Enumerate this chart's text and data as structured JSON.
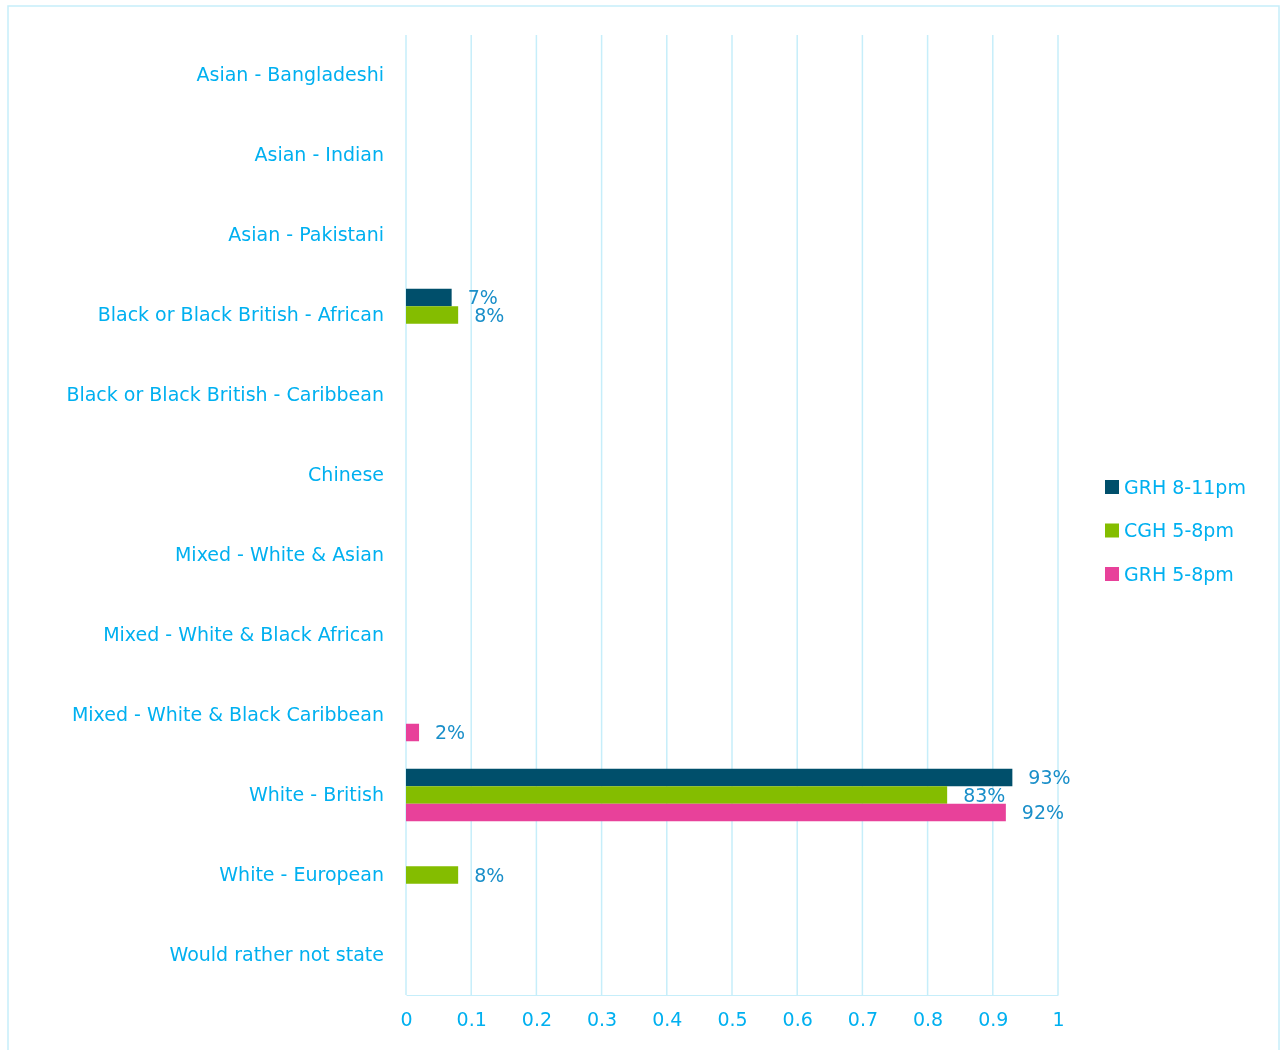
{
  "chart_data": {
    "type": "bar",
    "orientation": "horizontal",
    "categories": [
      "Asian - Bangladeshi",
      "Asian - Indian",
      "Asian - Pakistani",
      "Black or Black British - African",
      "Black or Black British - Caribbean",
      "Chinese",
      "Mixed - White & Asian",
      "Mixed - White & Black African",
      "Mixed - White & Black Caribbean",
      "White - British",
      "White  - European",
      "Would rather not state"
    ],
    "series": [
      {
        "name": "GRH 8-11pm",
        "color": "#004f6b",
        "values": [
          null,
          null,
          null,
          0.07,
          null,
          null,
          null,
          null,
          null,
          0.93,
          null,
          null
        ],
        "value_labels": [
          null,
          null,
          null,
          "7%",
          null,
          null,
          null,
          null,
          null,
          "93%",
          null,
          null
        ]
      },
      {
        "name": "CGH 5-8pm",
        "color": "#84bd00",
        "values": [
          null,
          null,
          null,
          0.08,
          null,
          null,
          null,
          null,
          null,
          0.83,
          0.08,
          null
        ],
        "value_labels": [
          null,
          null,
          null,
          "8%",
          null,
          null,
          null,
          null,
          null,
          "83%",
          "8%",
          null
        ]
      },
      {
        "name": "GRH 5-8pm",
        "color": "#e8419a",
        "values": [
          null,
          null,
          null,
          null,
          null,
          null,
          null,
          null,
          0.02,
          0.92,
          null,
          null
        ],
        "value_labels": [
          null,
          null,
          null,
          null,
          null,
          null,
          null,
          null,
          "2%",
          "92%",
          null,
          null
        ]
      }
    ],
    "xlim": [
      0,
      1
    ],
    "xticks": [
      0,
      0.1,
      0.2,
      0.3,
      0.4,
      0.5,
      0.6,
      0.7,
      0.8,
      0.9,
      1
    ],
    "grid": "x",
    "legend": "right"
  }
}
